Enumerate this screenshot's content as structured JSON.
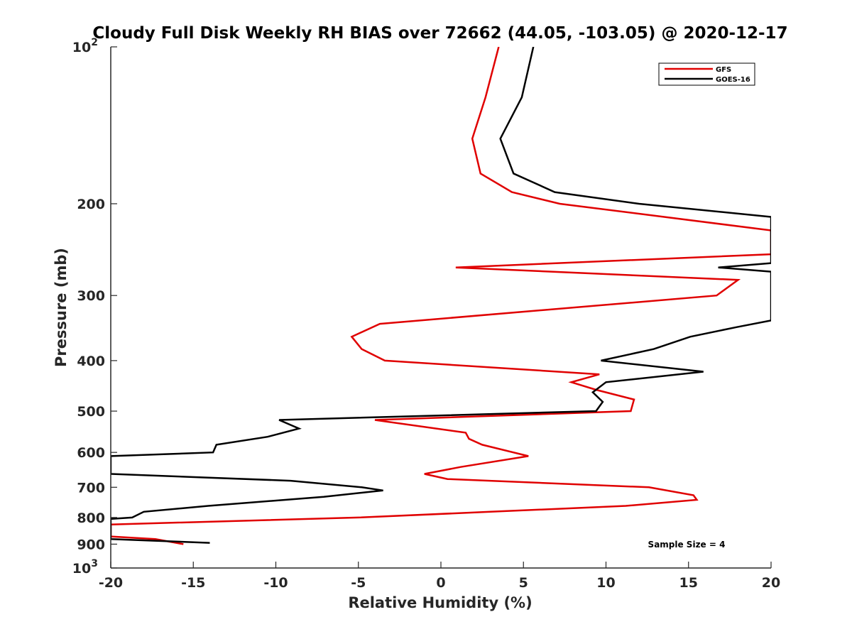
{
  "chart_data": {
    "type": "line",
    "title": "Cloudy Full Disk Weekly RH BIAS over 72662 (44.05, -103.05) @ 2020-12-17",
    "xlabel": "Relative Humidity (%)",
    "ylabel": "Pressure (mb)",
    "xlim": [
      -20,
      20
    ],
    "ylim": [
      100,
      1000
    ],
    "y_scale": "log",
    "y_reversed": true,
    "x_ticks": [
      "-20",
      "-15",
      "-10",
      "-5",
      "0",
      "5",
      "10",
      "15",
      "20"
    ],
    "y_ticks": [
      {
        "value": 100,
        "base": "10",
        "exp": "2"
      },
      {
        "value": 200,
        "label": "200"
      },
      {
        "value": 300,
        "label": "300"
      },
      {
        "value": 400,
        "label": "400"
      },
      {
        "value": 500,
        "label": "500"
      },
      {
        "value": 600,
        "label": "600"
      },
      {
        "value": 700,
        "label": "700"
      },
      {
        "value": 800,
        "label": "800"
      },
      {
        "value": 900,
        "label": "900"
      },
      {
        "value": 1000,
        "base": "10",
        "exp": "3"
      }
    ],
    "grid": false,
    "legend_position": "top-right",
    "annotation": "Sample Size = 4",
    "series": [
      {
        "name": "GFS",
        "color": "#e00000",
        "points": [
          [
            3.5,
            100
          ],
          [
            2.7,
            125
          ],
          [
            1.9,
            150
          ],
          [
            2.4,
            175
          ],
          [
            4.3,
            190
          ],
          [
            7.2,
            200
          ],
          [
            20,
            225
          ],
          [
            20,
            250
          ],
          [
            0.9,
            265
          ],
          [
            18,
            280
          ],
          [
            16.7,
            300
          ],
          [
            -3.7,
            340
          ],
          [
            -5.4,
            360
          ],
          [
            -4.8,
            380
          ],
          [
            -3.4,
            400
          ],
          [
            9.6,
            425
          ],
          [
            7.9,
            440
          ],
          [
            9.4,
            455
          ],
          [
            11.7,
            475
          ],
          [
            11.5,
            500
          ],
          [
            -4.0,
            520
          ],
          [
            1.5,
            550
          ],
          [
            1.7,
            565
          ],
          [
            2.5,
            580
          ],
          [
            5.3,
            610
          ],
          [
            1.2,
            640
          ],
          [
            -1.0,
            660
          ],
          [
            0.4,
            675
          ],
          [
            12.6,
            700
          ],
          [
            15.3,
            725
          ],
          [
            15.5,
            740
          ],
          [
            11.2,
            760
          ],
          [
            3.0,
            780
          ],
          [
            -5.0,
            800
          ],
          [
            -20,
            825
          ],
          [
            -20,
            870
          ],
          [
            -17.3,
            880
          ],
          [
            -15.6,
            900
          ]
        ]
      },
      {
        "name": "GOES-16",
        "color": "#000000",
        "points": [
          [
            5.6,
            100
          ],
          [
            4.9,
            125
          ],
          [
            3.6,
            150
          ],
          [
            4.4,
            175
          ],
          [
            6.9,
            190
          ],
          [
            12.0,
            200
          ],
          [
            20,
            212
          ],
          [
            20,
            260
          ],
          [
            16.8,
            265
          ],
          [
            20,
            270
          ],
          [
            20,
            335
          ],
          [
            17.9,
            345
          ],
          [
            15.1,
            360
          ],
          [
            12.9,
            380
          ],
          [
            9.7,
            400
          ],
          [
            15.9,
            420
          ],
          [
            10.0,
            440
          ],
          [
            9.2,
            460
          ],
          [
            9.8,
            480
          ],
          [
            9.4,
            500
          ],
          [
            -9.8,
            520
          ],
          [
            -8.6,
            540
          ],
          [
            -10.5,
            560
          ],
          [
            -13.6,
            580
          ],
          [
            -13.8,
            600
          ],
          [
            -20,
            610
          ],
          [
            -20,
            660
          ],
          [
            -9.1,
            680
          ],
          [
            -4.8,
            700
          ],
          [
            -3.5,
            710
          ],
          [
            -7.1,
            730
          ],
          [
            -14.1,
            760
          ],
          [
            -18.0,
            780
          ],
          [
            -18.7,
            800
          ],
          [
            -20,
            805
          ],
          [
            -20,
            880
          ],
          [
            -14.0,
            895
          ]
        ]
      }
    ]
  }
}
